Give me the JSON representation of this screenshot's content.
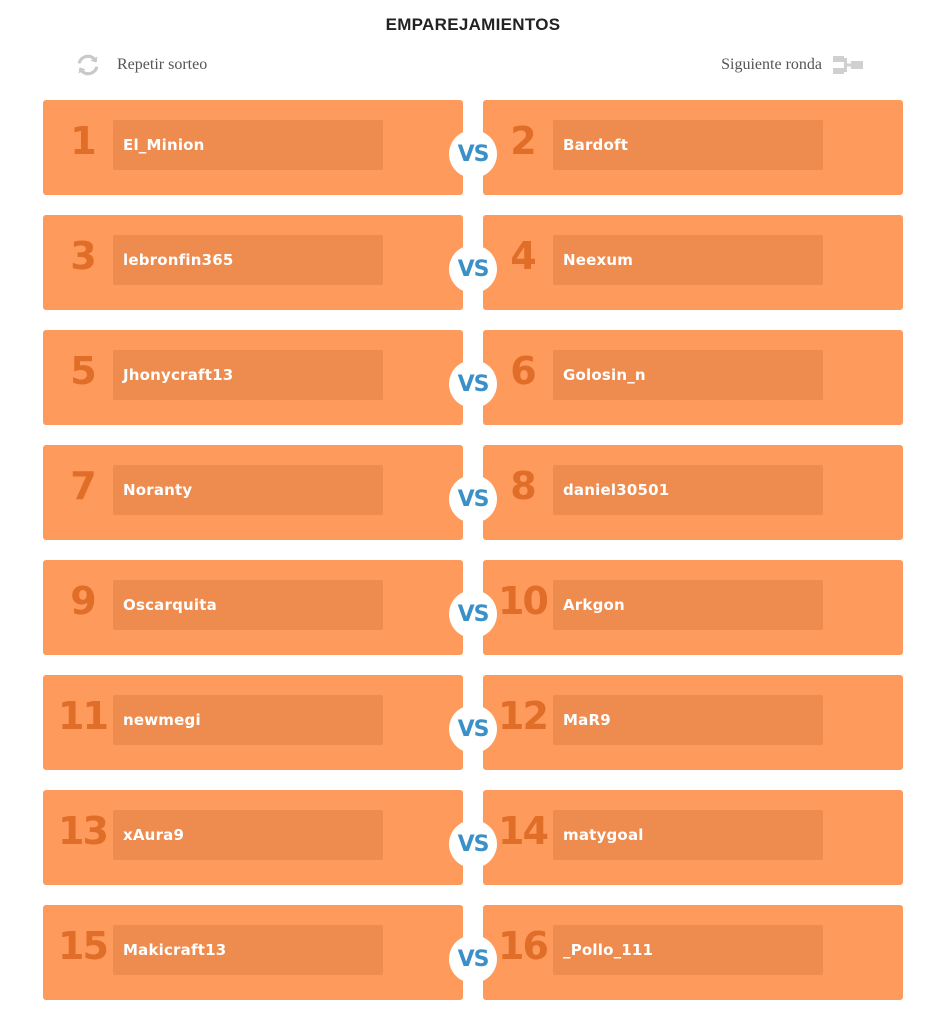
{
  "header": {
    "title": "EMPAREJAMIENTOS",
    "redraw_label": "Repetir sorteo",
    "next_round_label": "Siguiente ronda"
  },
  "vs_label": "VS",
  "matches": [
    {
      "left": {
        "seed": "1",
        "name": "El_Minion"
      },
      "right": {
        "seed": "2",
        "name": "Bardoft"
      }
    },
    {
      "left": {
        "seed": "3",
        "name": "lebronfin365"
      },
      "right": {
        "seed": "4",
        "name": "Neexum"
      }
    },
    {
      "left": {
        "seed": "5",
        "name": "Jhonycraft13"
      },
      "right": {
        "seed": "6",
        "name": "Golosin_n"
      }
    },
    {
      "left": {
        "seed": "7",
        "name": "Noranty"
      },
      "right": {
        "seed": "8",
        "name": "daniel30501"
      }
    },
    {
      "left": {
        "seed": "9",
        "name": "Oscarquita"
      },
      "right": {
        "seed": "10",
        "name": "Arkgon"
      }
    },
    {
      "left": {
        "seed": "11",
        "name": "newmegi"
      },
      "right": {
        "seed": "12",
        "name": "MaR9"
      }
    },
    {
      "left": {
        "seed": "13",
        "name": "xAura9"
      },
      "right": {
        "seed": "14",
        "name": "matygoal"
      }
    },
    {
      "left": {
        "seed": "15",
        "name": "Makicraft13"
      },
      "right": {
        "seed": "16",
        "name": "_Pollo_111"
      }
    }
  ],
  "icons": {
    "redraw": "refresh-icon",
    "next_round": "bracket-icon"
  },
  "colors": {
    "slot_bg": "#fe9a5b",
    "name_box_bg": "#ee8c50",
    "seed_text": "#e06d28",
    "vs_text": "#3b91c7"
  }
}
